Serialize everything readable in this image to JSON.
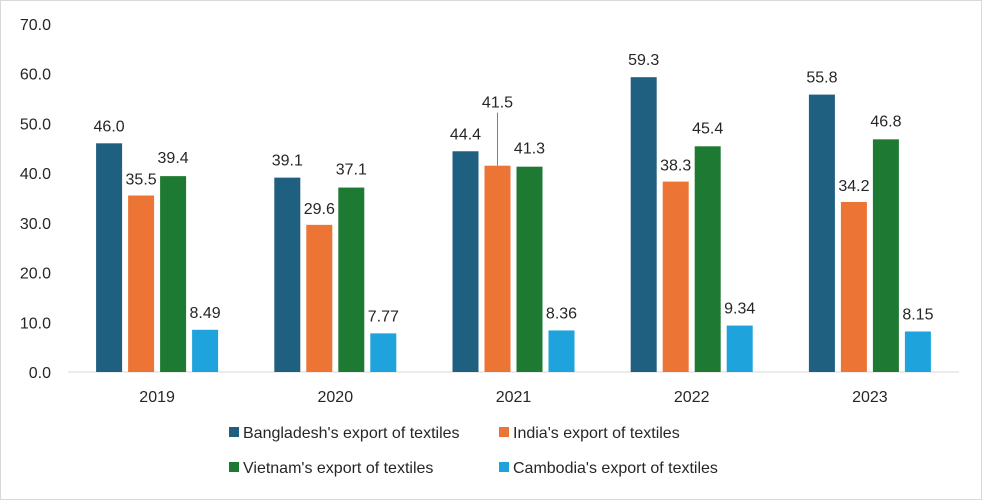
{
  "chart_data": {
    "type": "bar",
    "categories": [
      "2019",
      "2020",
      "2021",
      "2022",
      "2023"
    ],
    "series": [
      {
        "name": "Bangladesh's export of textiles",
        "color": "#1f5f80",
        "values": [
          46.0,
          39.1,
          44.4,
          59.3,
          55.8
        ],
        "labels": [
          "46.0",
          "39.1",
          "44.4",
          "59.3",
          "55.8"
        ]
      },
      {
        "name": "India's export of textiles",
        "color": "#ec7434",
        "values": [
          35.5,
          29.6,
          41.5,
          38.3,
          34.2
        ],
        "labels": [
          "35.5",
          "29.6",
          "41.5",
          "38.3",
          "34.2"
        ]
      },
      {
        "name": "Vietnam's export of textiles",
        "color": "#1e7a32",
        "values": [
          39.4,
          37.1,
          41.3,
          45.4,
          46.8
        ],
        "labels": [
          "39.4",
          "37.1",
          "41.3",
          "45.4",
          "46.8"
        ]
      },
      {
        "name": "Cambodia's export of textiles",
        "color": "#1ea3dc",
        "values": [
          8.49,
          7.77,
          8.36,
          9.34,
          8.15
        ],
        "labels": [
          "8.49",
          "7.77",
          "8.36",
          "9.34",
          "8.15"
        ]
      }
    ],
    "ylim": [
      0,
      70
    ],
    "yticks": [
      "0.0",
      "10.0",
      "20.0",
      "30.0",
      "40.0",
      "50.0",
      "60.0",
      "70.0"
    ],
    "grid": false,
    "legend": "bottom",
    "title": "",
    "xlabel": "",
    "ylabel": ""
  }
}
